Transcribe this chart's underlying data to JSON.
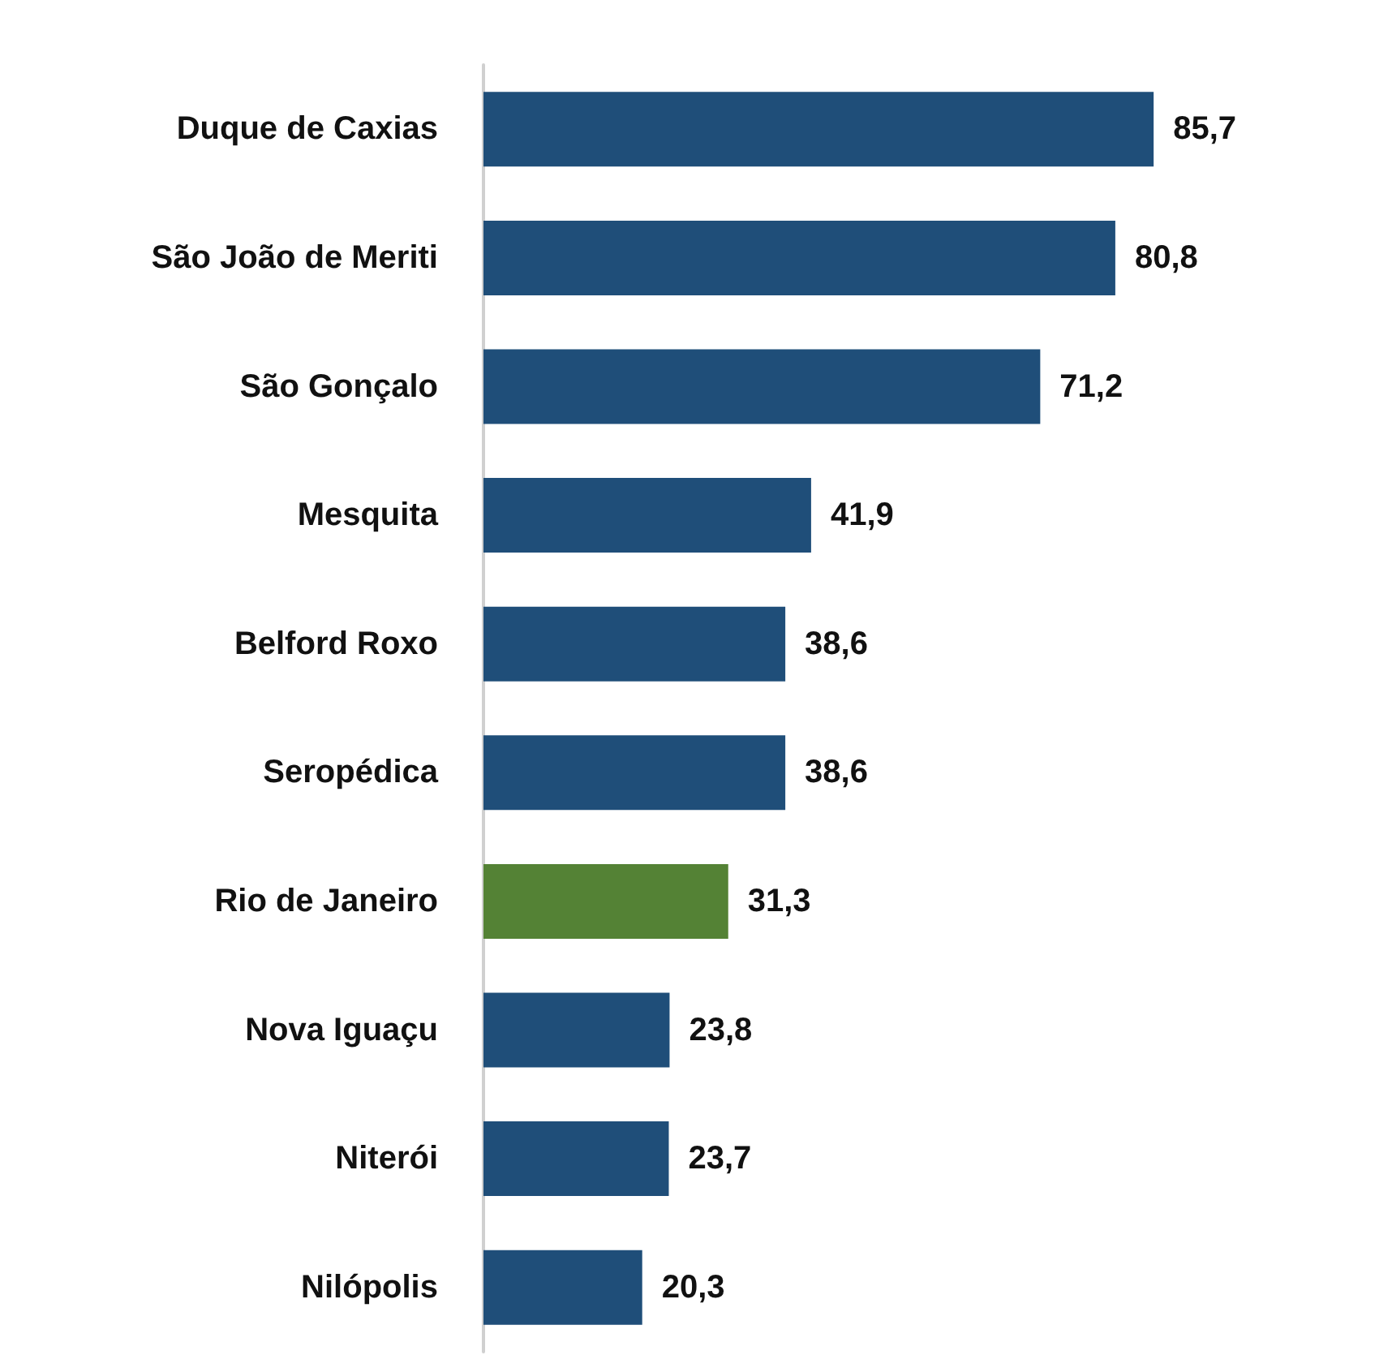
{
  "chart_data": {
    "type": "bar",
    "orientation": "horizontal",
    "categories": [
      "Duque de Caxias",
      "São João de Meriti",
      "São Gonçalo",
      "Mesquita",
      "Belford Roxo",
      "Seropédica",
      "Rio de Janeiro",
      "Nova Iguaçu",
      "Niterói",
      "Nilópolis"
    ],
    "values": [
      85.7,
      80.8,
      71.2,
      41.9,
      38.6,
      38.6,
      31.3,
      23.8,
      23.7,
      20.3
    ],
    "colors": [
      "#1f4e79",
      "#1f4e79",
      "#1f4e79",
      "#1f4e79",
      "#1f4e79",
      "#1f4e79",
      "#548235",
      "#1f4e79",
      "#1f4e79",
      "#1f4e79"
    ],
    "value_labels": [
      "85,7",
      "80,8",
      "71,2",
      "41,9",
      "38,6",
      "38,6",
      "31,3",
      "23,8",
      "23,7",
      "20,3"
    ]
  }
}
